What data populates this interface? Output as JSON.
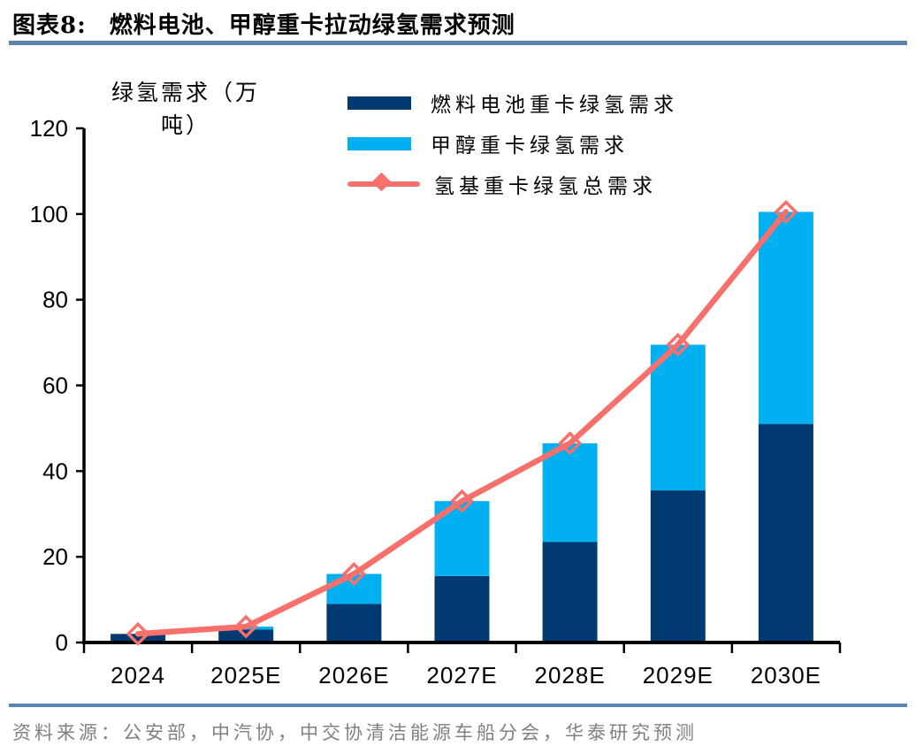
{
  "header": {
    "figure_label": "图表8:",
    "title": "燃料电池、甲醇重卡拉动绿氢需求预测"
  },
  "footer": {
    "source": "资料来源：公安部，中汽协，中交协清洁能源车船分会，华泰研究预测"
  },
  "colors": {
    "fuel_cell_bar": "#003a70",
    "methanol_bar": "#00b0f0",
    "total_line": "#f8706c",
    "rule_blue": "#5b83ad",
    "source_gray": "#808080",
    "axis": "#000000"
  },
  "chart_data": {
    "type": "bar",
    "subtype": "stacked-bars-with-line-overlay",
    "title": "",
    "ylabel": "绿氢需求（万吨）",
    "ylabel_lines": {
      "line1": "绿氢需求（万",
      "line2": "吨）"
    },
    "categories": [
      "2024",
      "2025E",
      "2026E",
      "2027E",
      "2028E",
      "2029E",
      "2030E"
    ],
    "series": [
      {
        "name": "燃料电池重卡绿氢需求",
        "kind": "bar",
        "stack": true,
        "color": "#003a70",
        "values": [
          2,
          3,
          9,
          15.5,
          23.5,
          35.5,
          51
        ]
      },
      {
        "name": "甲醇重卡绿氢需求",
        "kind": "bar",
        "stack": true,
        "color": "#00b0f0",
        "values": [
          0,
          0.7,
          7,
          17.5,
          23,
          34,
          49.5
        ]
      },
      {
        "name": "氢基重卡绿氢总需求",
        "kind": "line",
        "color": "#f8706c",
        "marker": "open-diamond",
        "values": [
          2,
          3.7,
          16,
          33,
          46.5,
          69.5,
          100.5
        ]
      }
    ],
    "ylim": [
      0,
      120
    ],
    "y_ticks": [
      0,
      20,
      40,
      60,
      80,
      100,
      120
    ],
    "grid": false,
    "legend_position": "top-center"
  }
}
